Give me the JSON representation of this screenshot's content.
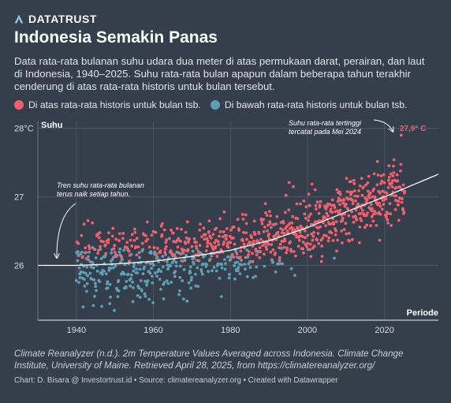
{
  "brand": {
    "name": "DATATRUST",
    "logo_icon": "triangle-a-logo-icon"
  },
  "title": "Indonesia Semakin Panas",
  "subtitle": "Data rata-rata bulanan suhu udara dua meter di atas permukaan darat, perairan, dan laut di Indonesia, 1940–2025. Suhu rata-rata bulan apapun dalam beberapa tahun terakhir cenderung di atas rata-rata historis untuk bulan tersebut.",
  "legend": {
    "above_label": "Di atas rata-rata historis untuk bulan tsb.",
    "below_label": "Di bawah rata-rata historis untuk bulan tsb."
  },
  "colors": {
    "above": "#f2606e",
    "below": "#5e9fb5",
    "background": "#353e4b",
    "trend": "#ffffff",
    "peak_label": "#f2606e"
  },
  "chart_data": {
    "type": "scatter",
    "ylabel": "Suhu",
    "xlabel": "Periode",
    "xlim": [
      1930,
      2034
    ],
    "ylim": [
      25.2,
      28.1
    ],
    "xticks": [
      1940,
      1960,
      1980,
      2000,
      2020
    ],
    "yticks": [
      {
        "value": 26,
        "label": "26"
      },
      {
        "value": 27,
        "label": "27"
      },
      {
        "value": 28,
        "label": "28°C"
      }
    ],
    "grid": true,
    "series": [
      {
        "name": "Di atas rata-rata historis untuk bulan tsb.",
        "color": "#f2606e"
      },
      {
        "name": "Di bawah rata-rata historis untuk bulan tsb.",
        "color": "#5e9fb5"
      }
    ],
    "trend": {
      "x": [
        1930,
        1940,
        1950,
        1960,
        1970,
        1980,
        1990,
        2000,
        2010,
        2020,
        2034
      ],
      "y": [
        26.0,
        26.0,
        26.02,
        26.06,
        26.13,
        26.22,
        26.36,
        26.55,
        26.78,
        27.0,
        27.33
      ]
    },
    "peak": {
      "x": 2024.4,
      "y": 27.9,
      "label": "27,9° C"
    },
    "annotations": {
      "trend_note": [
        "Tren suhu rata-rata bulanan",
        "terus naik setiap tahun."
      ],
      "peak_note": [
        "Suhu rata-rata tertinggi",
        "tercatat pada Mei 2024"
      ]
    },
    "points_summary": {
      "period": "1940–2025",
      "monthly_means": {
        "1940": 26.0,
        "1960": 26.06,
        "1980": 26.22,
        "2000": 26.55,
        "2020": 27.0
      },
      "max": {
        "date": "Mei 2024",
        "value": 27.9
      }
    }
  },
  "footer": {
    "source": "Climate Reanalyzer (n.d.). 2m Temperature Values Averaged across Indonesia. Climate Change Institute, University of Maine. Retrieved April 28, 2025, from https://climatereanalyzer.org/",
    "credit": "Chart: D. Bisara @ Investortrust.id • Source: climatereanalyzer.org • Created with Datawrapper"
  }
}
